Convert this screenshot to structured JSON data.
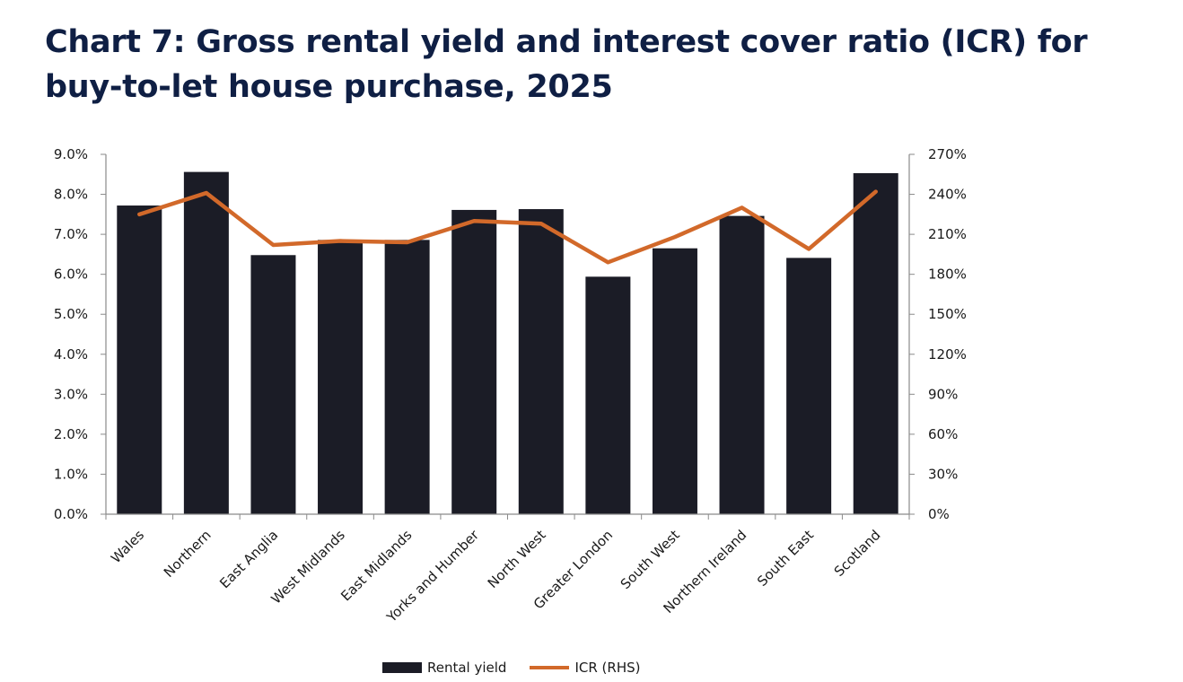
{
  "chart_data": {
    "type": "bar",
    "title": "Chart 7: Gross rental yield and interest cover ratio (ICR) for buy-to-let house purchase, 2025",
    "categories": [
      "Wales",
      "Northern",
      "East Anglia",
      "West Midlands",
      "East Midlands",
      "Yorks and Humber",
      "North West",
      "Greater London",
      "South West",
      "Northern Ireland",
      "South East",
      "Scotland"
    ],
    "series": [
      {
        "name": "Rental yield",
        "type": "bar",
        "axis": "left",
        "color": "#1b1c26",
        "values": [
          7.72,
          8.56,
          6.48,
          6.86,
          6.86,
          7.61,
          7.63,
          5.94,
          6.65,
          7.46,
          6.41,
          8.53
        ]
      },
      {
        "name": "ICR (RHS)",
        "type": "line",
        "axis": "right",
        "color": "#d2692a",
        "values": [
          225,
          241,
          202,
          205,
          204,
          220,
          218,
          189,
          208,
          230,
          199,
          242
        ]
      }
    ],
    "left_axis": {
      "min": 0,
      "max": 9,
      "step": 1,
      "format": "percent_1dp",
      "tick_labels": [
        "0.0%",
        "1.0%",
        "2.0%",
        "3.0%",
        "4.0%",
        "5.0%",
        "6.0%",
        "7.0%",
        "8.0%",
        "9.0%"
      ]
    },
    "right_axis": {
      "min": 0,
      "max": 270,
      "step": 30,
      "format": "percent_0dp",
      "tick_labels": [
        "0%",
        "30%",
        "60%",
        "90%",
        "120%",
        "150%",
        "180%",
        "210%",
        "240%",
        "270%"
      ]
    },
    "grid": false,
    "legend_position": "bottom"
  }
}
